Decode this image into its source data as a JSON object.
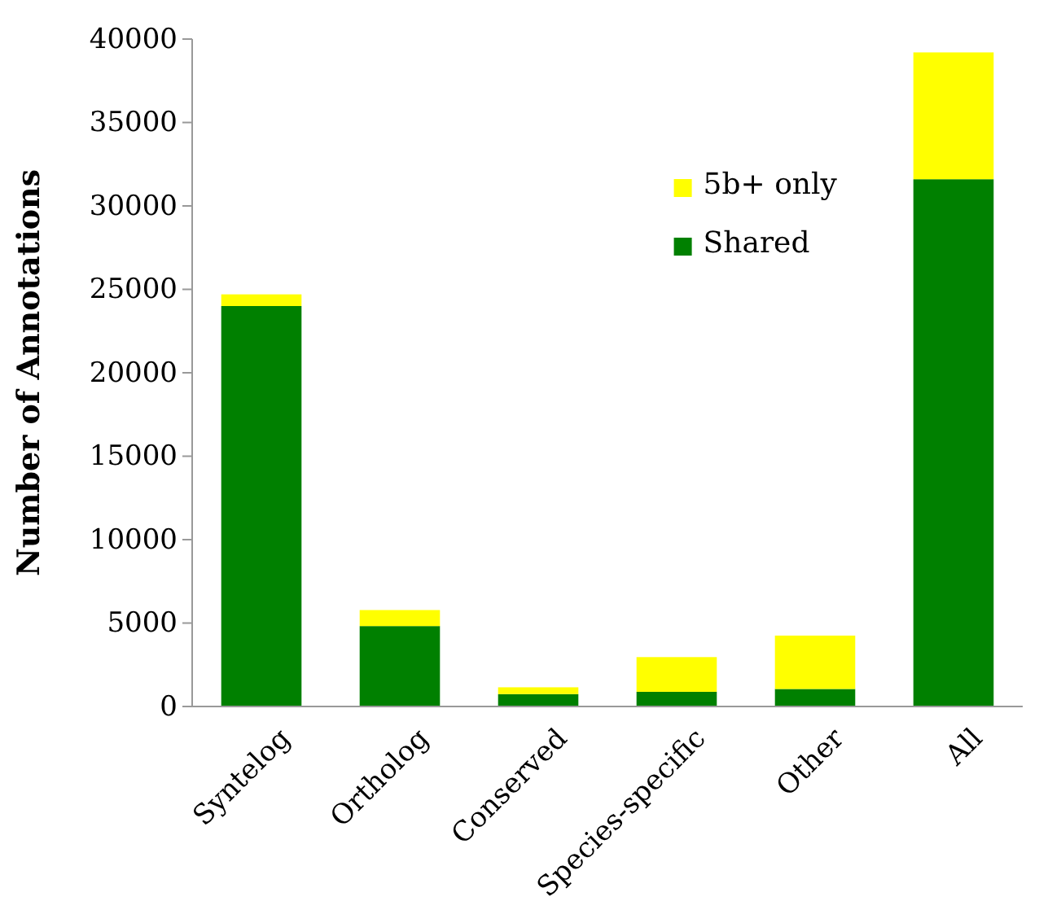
{
  "chart_data": {
    "type": "bar",
    "stacked": true,
    "ylabel": "Number of Annotations",
    "categories": [
      "Syntelog",
      "Ortholog",
      "Conserved",
      "Species-specific",
      "Other",
      "All"
    ],
    "series": [
      {
        "name": "Shared",
        "color": "#008000",
        "values": [
          24000,
          4820,
          740,
          880,
          1050,
          31600
        ]
      },
      {
        "name": "5b+ only",
        "color": "#ffff00",
        "values": [
          700,
          960,
          410,
          2080,
          3200,
          7600
        ]
      }
    ],
    "ylim": [
      0,
      40000
    ],
    "yticks": [
      0,
      5000,
      10000,
      15000,
      20000,
      25000,
      30000,
      35000,
      40000
    ],
    "grid": false,
    "legend": "top right"
  }
}
